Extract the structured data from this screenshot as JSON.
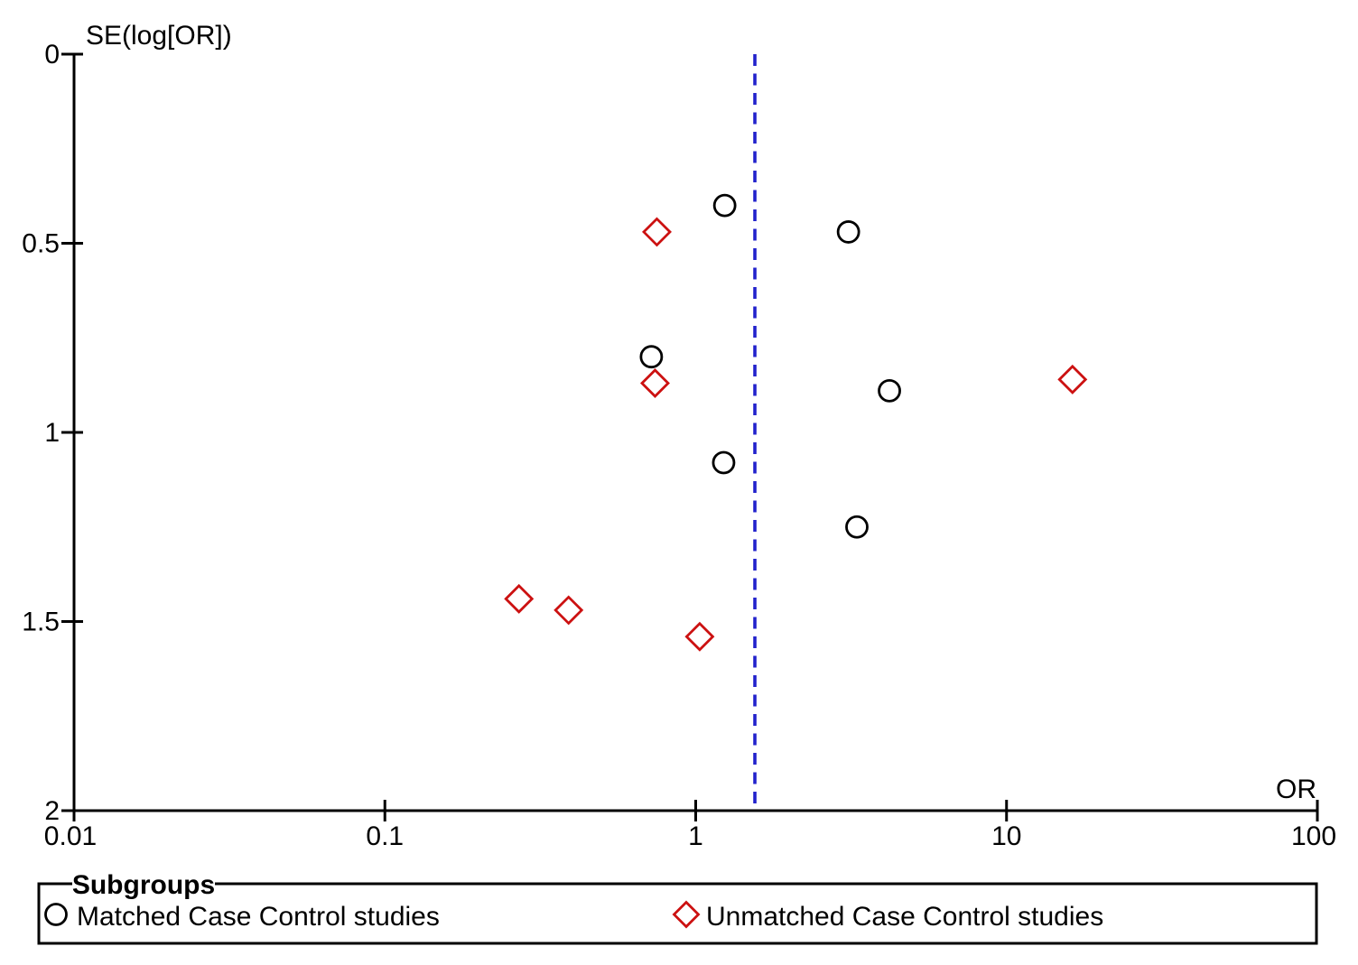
{
  "chart_data": {
    "type": "scatter",
    "title": "",
    "x_axis": {
      "label": "OR",
      "scale": "log",
      "min": 0.01,
      "max": 100,
      "ticks": [
        0.01,
        0.1,
        1,
        10,
        100
      ],
      "tick_labels": [
        "0.01",
        "0.1",
        "1",
        "10",
        "100"
      ]
    },
    "y_axis": {
      "label": "SE(log[OR])",
      "min": 0,
      "max": 2,
      "direction": "inverted",
      "ticks": [
        0,
        0.5,
        1,
        1.5,
        2
      ],
      "tick_labels": [
        "0",
        "0.5",
        "1",
        "1.5",
        "2"
      ]
    },
    "reference_line": {
      "x": 1.55,
      "style": "dashed",
      "color": "#2222cc"
    },
    "grid": false,
    "series": [
      {
        "name": "Matched Case Control studies",
        "marker": "circle",
        "color": "#000000",
        "points": [
          {
            "or": 1.24,
            "se": 0.4
          },
          {
            "or": 3.1,
            "se": 0.47
          },
          {
            "or": 0.72,
            "se": 0.8
          },
          {
            "or": 4.2,
            "se": 0.89
          },
          {
            "or": 1.23,
            "se": 1.08
          },
          {
            "or": 3.3,
            "se": 1.25
          }
        ]
      },
      {
        "name": "Unmatched Case Control studies",
        "marker": "diamond",
        "color": "#cc1111",
        "points": [
          {
            "or": 0.75,
            "se": 0.47
          },
          {
            "or": 0.74,
            "se": 0.87
          },
          {
            "or": 16.3,
            "se": 0.86
          },
          {
            "or": 0.27,
            "se": 1.44
          },
          {
            "or": 0.39,
            "se": 1.47
          },
          {
            "or": 1.03,
            "se": 1.54
          }
        ]
      }
    ]
  },
  "legend": {
    "title": "Subgroups",
    "items": [
      {
        "label": "Matched Case Control studies",
        "marker": "circle",
        "color": "#000000"
      },
      {
        "label": "Unmatched Case Control studies",
        "marker": "diamond",
        "color": "#cc1111"
      }
    ]
  }
}
